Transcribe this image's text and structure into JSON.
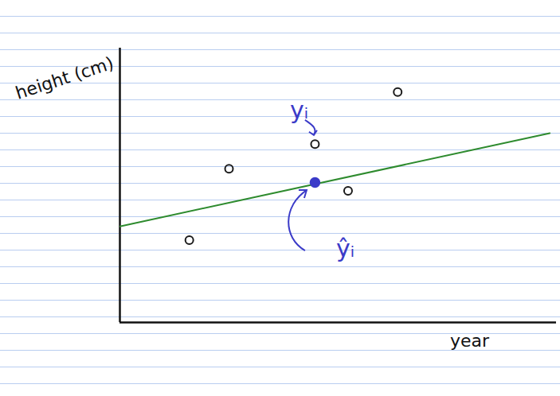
{
  "chart_data": {
    "type": "scatter",
    "x_label": "year",
    "y_label": "height (cm)",
    "tick_labels": false,
    "grid": false,
    "xlim": [
      0,
      13.2
    ],
    "ylim": [
      0,
      10
    ],
    "x": [
      2.1,
      3.3,
      5.9,
      6.9,
      8.4
    ],
    "values": [
      3.0,
      5.6,
      6.5,
      4.8,
      8.4
    ],
    "color": "#1a1a1a",
    "marker": "open",
    "fit_line": {
      "type": "line",
      "x": [
        0,
        13
      ],
      "values": [
        3.5,
        6.9
      ],
      "color": "#2e8b2e"
    },
    "annotations": [
      {
        "text": "yᵢ",
        "x": 5.9,
        "y": 6.5,
        "color": "#3b3bc8"
      },
      {
        "text": "ŷᵢ",
        "x": 5.9,
        "y": 5.1,
        "color": "#3b3bc8",
        "marker": "filled"
      }
    ]
  }
}
